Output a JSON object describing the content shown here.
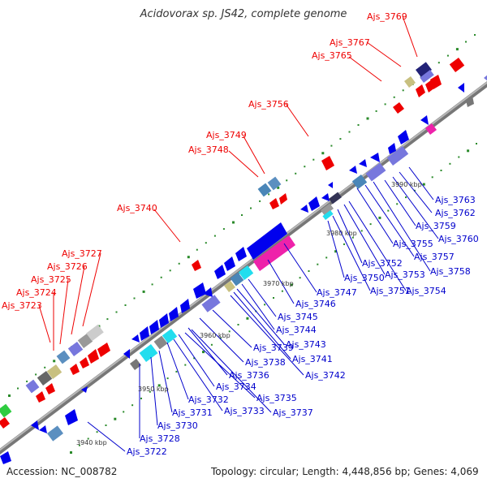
{
  "title": "Acidovorax sp. JS42, complete genome",
  "footer": {
    "accession": "Accession: NC_008782",
    "summary": "Topology: circular; Length: 4,448,856 bp; Genes: 4,069"
  },
  "colors": {
    "backbone": "#8c8c8c",
    "forward_gene": "#0000ee",
    "reverse_gene": "#ee0000",
    "tick": "#2a8a2a",
    "label_top": "#ee0000",
    "label_bottom": "#0000cc"
  },
  "scale_labels": [
    "3940 kbp",
    "3950 kbp",
    "3960 kbp",
    "3970 kbp",
    "3980 kbp",
    "3990 kbp"
  ],
  "top_labels": [
    "Ajs_3769",
    "Ajs_3767",
    "Ajs_3765",
    "Ajs_3756",
    "Ajs_3749",
    "Ajs_3748",
    "Ajs_3740",
    "Ajs_3727",
    "Ajs_3726",
    "Ajs_3725",
    "Ajs_3724",
    "Ajs_3723"
  ],
  "bottom_labels": [
    "Ajs_3763",
    "Ajs_3762",
    "Ajs_3759",
    "Ajs_3760",
    "Ajs_3755",
    "Ajs_3757",
    "Ajs_3758",
    "Ajs_3752",
    "Ajs_3753",
    "Ajs_3754",
    "Ajs_3750",
    "Ajs_3751",
    "Ajs_3747",
    "Ajs_3746",
    "Ajs_3745",
    "Ajs_3744",
    "Ajs_3743",
    "Ajs_3741",
    "Ajs_3742",
    "Ajs_3739",
    "Ajs_3738",
    "Ajs_3736",
    "Ajs_3734",
    "Ajs_3735",
    "Ajs_3737",
    "Ajs_3732",
    "Ajs_3733",
    "Ajs_3731",
    "Ajs_3730",
    "Ajs_3728",
    "Ajs_3722"
  ]
}
